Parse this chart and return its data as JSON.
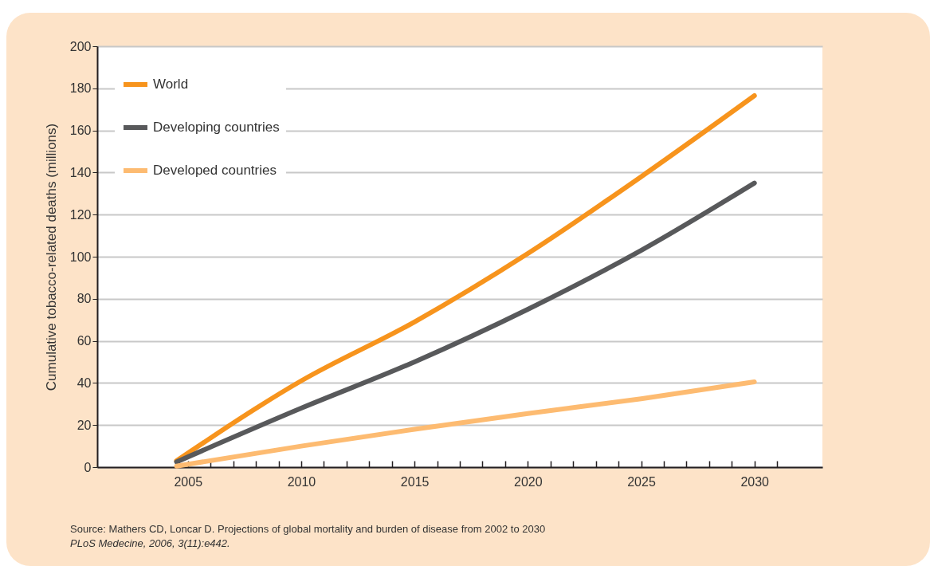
{
  "chart_data": {
    "type": "line",
    "ylabel": "Cumulative tobacco-related deaths (millions)",
    "x": [
      2004.5,
      2010,
      2015,
      2020,
      2025,
      2030
    ],
    "series": [
      {
        "name": "World",
        "color": "#f7941d",
        "values": [
          3,
          41,
          69,
          101.5,
          138,
          176.5
        ]
      },
      {
        "name": "Developing countries",
        "color": "#58595b",
        "values": [
          2.5,
          28,
          50,
          75,
          103,
          135
        ]
      },
      {
        "name": "Developed countries",
        "color": "#fdbb71",
        "values": [
          0.5,
          10,
          18,
          25.5,
          32.5,
          40.5
        ]
      }
    ],
    "xlim": [
      2001,
      2033
    ],
    "xticks": [
      2005,
      {
        "value": 2006,
        "label": null
      },
      {
        "value": 2007,
        "label": null
      },
      {
        "value": 2008,
        "label": null
      },
      {
        "value": 2009,
        "label": null
      },
      2010,
      {
        "value": 2011,
        "label": null
      },
      {
        "value": 2012,
        "label": null
      },
      {
        "value": 2013,
        "label": null
      },
      {
        "value": 2014,
        "label": null
      },
      2015,
      {
        "value": 2016,
        "label": null
      },
      {
        "value": 2017,
        "label": null
      },
      {
        "value": 2018,
        "label": null
      },
      {
        "value": 2019,
        "label": null
      },
      2020,
      {
        "value": 2021,
        "label": null
      },
      {
        "value": 2022,
        "label": null
      },
      {
        "value": 2023,
        "label": null
      },
      {
        "value": 2024,
        "label": null
      },
      2025,
      {
        "value": 2026,
        "label": null
      },
      {
        "value": 2027,
        "label": null
      },
      {
        "value": 2028,
        "label": null
      },
      {
        "value": 2029,
        "label": null
      },
      2030,
      {
        "value": 2031,
        "label": null
      }
    ],
    "ylim": [
      0,
      200
    ],
    "yticks": [
      0,
      20,
      40,
      60,
      80,
      100,
      120,
      140,
      160,
      180,
      200
    ],
    "grid": "y",
    "legend": "top left",
    "marker": "none",
    "line_style": "solid",
    "annotations": [
      "Source: Mathers CD, Loncar D. Projections of global mortality and burden of disease from 2002 to 2030",
      "PLoS Medecine, 2006, 3(11):e442."
    ]
  }
}
